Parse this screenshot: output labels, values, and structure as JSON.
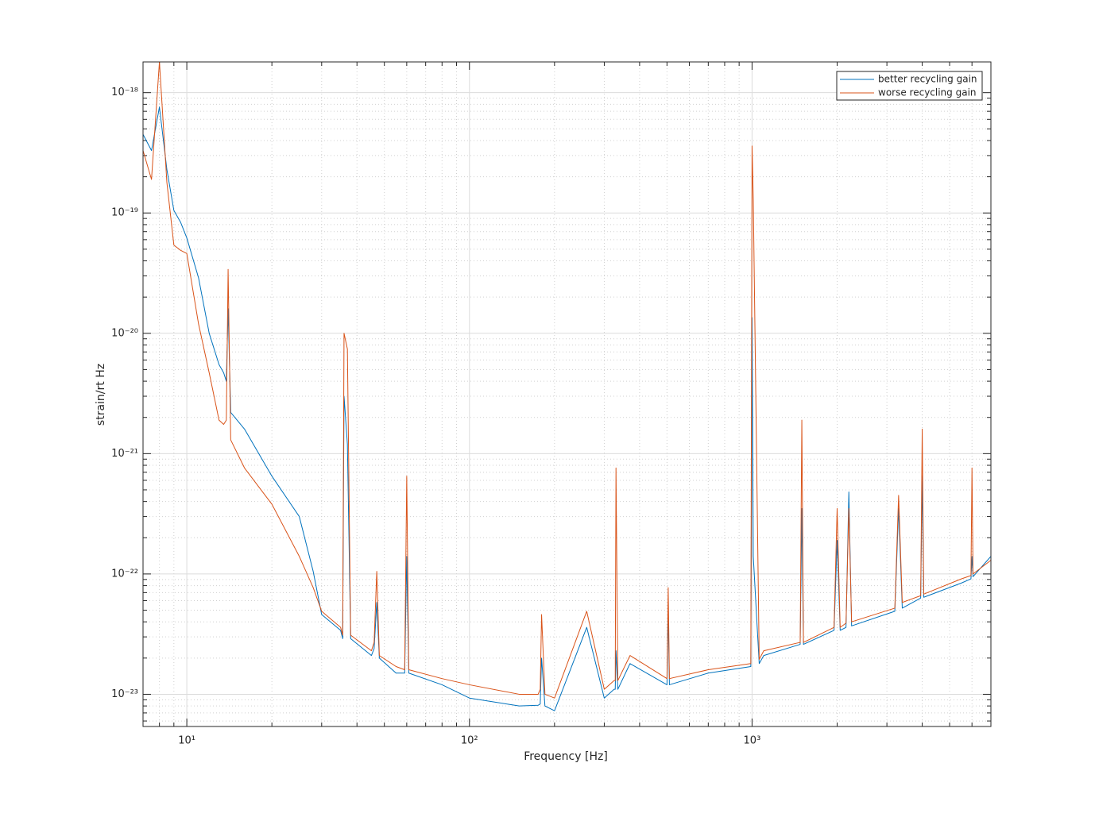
{
  "chart_data": {
    "type": "line",
    "xlabel": "Frequency [Hz]",
    "ylabel": "strain/rt Hz",
    "xscale": "log",
    "yscale": "log",
    "grid": true,
    "minor_grid": true,
    "legend": "upper right",
    "xlim": [
      7,
      7000
    ],
    "ylim": [
      5.4e-24,
      1.8e-18
    ],
    "xticks": [
      {
        "value": 10,
        "label": "10¹"
      },
      {
        "value": 100,
        "label": "10²"
      },
      {
        "value": 1000,
        "label": "10³"
      }
    ],
    "yticks": [
      {
        "value": 1e-23,
        "label": "10⁻²³"
      },
      {
        "value": 1e-22,
        "label": "10⁻²²"
      },
      {
        "value": 1e-21,
        "label": "10⁻²¹"
      },
      {
        "value": 1e-20,
        "label": "10⁻²⁰"
      },
      {
        "value": 1e-19,
        "label": "10⁻¹⁹"
      },
      {
        "value": 1e-18,
        "label": "10⁻¹⁸"
      }
    ],
    "xminorticks": [
      8,
      9,
      20,
      30,
      40,
      50,
      60,
      70,
      80,
      90,
      200,
      300,
      400,
      500,
      600,
      700,
      800,
      900,
      2000,
      3000,
      4000,
      5000,
      6000
    ],
    "yminorticks": [
      6e-24,
      7e-24,
      8e-24,
      9e-24,
      2e-23,
      3e-23,
      4e-23,
      5e-23,
      6e-23,
      7e-23,
      8e-23,
      9e-23,
      2e-22,
      3e-22,
      4e-22,
      5e-22,
      6e-22,
      7e-22,
      8e-22,
      9e-22,
      2e-21,
      3e-21,
      4e-21,
      5e-21,
      6e-21,
      7e-21,
      8e-21,
      9e-21,
      2e-20,
      3e-20,
      4e-20,
      5e-20,
      6e-20,
      7e-20,
      8e-20,
      9e-20,
      2e-19,
      3e-19,
      4e-19,
      5e-19,
      6e-19,
      7e-19,
      8e-19,
      9e-19
    ],
    "x": [
      7,
      7.5,
      8,
      8.5,
      9,
      9.5,
      10,
      11,
      12,
      13,
      13.5,
      13.8,
      14,
      14.3,
      16,
      20,
      25,
      28,
      30,
      35,
      35.6,
      36,
      37,
      38,
      45,
      46,
      47,
      48,
      55,
      59,
      60,
      61,
      80,
      100,
      150,
      175,
      178,
      180,
      185,
      200,
      260,
      300,
      325,
      328,
      330,
      335,
      370,
      500,
      505,
      510,
      700,
      990,
      1000,
      1010,
      1060,
      1100,
      1480,
      1500,
      1520,
      1950,
      2000,
      2050,
      2150,
      2200,
      2250,
      3200,
      3300,
      3400,
      3950,
      4000,
      4050,
      5500,
      5950,
      6000,
      6050,
      7000
    ],
    "series": [
      {
        "name": "better recycling gain",
        "color": "#0072bd",
        "values": [
          4.5e-19,
          3.3e-19,
          7.6e-19,
          2.3e-19,
          1.05e-19,
          8.4e-20,
          6.2e-20,
          2.9e-20,
          1e-20,
          5.5e-21,
          4.7e-21,
          4e-21,
          1.6e-20,
          2.2e-21,
          1.6e-21,
          6.5e-22,
          3e-22,
          1.05e-22,
          4.6e-23,
          3.4e-23,
          2.9e-23,
          3e-21,
          1.2e-21,
          2.9e-23,
          2.1e-23,
          2.4e-23,
          5.8e-23,
          2e-23,
          1.5e-23,
          1.5e-23,
          1.4e-22,
          1.5e-23,
          1.2e-23,
          9.3e-24,
          8e-24,
          8.1e-24,
          8.3e-24,
          2e-23,
          8e-24,
          7.3e-24,
          3.6e-23,
          9.3e-24,
          1.1e-23,
          1.1e-23,
          2.3e-23,
          1.1e-23,
          1.8e-23,
          1.2e-23,
          4.9e-23,
          1.2e-23,
          1.5e-23,
          1.7e-23,
          1.35e-20,
          1.4e-22,
          1.8e-23,
          2.1e-23,
          2.6e-23,
          3.5e-22,
          2.6e-23,
          3.4e-23,
          1.9e-22,
          3.4e-23,
          3.6e-23,
          4.8e-22,
          3.7e-23,
          4.9e-23,
          3.5e-22,
          5.2e-23,
          6.3e-23,
          6.5e-22,
          6.4e-23,
          8.4e-23,
          9.1e-23,
          1.4e-22,
          9.5e-23,
          1.4e-22
        ]
      },
      {
        "name": "worse recycling gain",
        "color": "#d95319",
        "values": [
          3.3e-19,
          1.9e-19,
          1.8e-18,
          1.8e-19,
          5.4e-20,
          4.9e-20,
          4.6e-20,
          1.2e-20,
          4.7e-21,
          1.9e-21,
          1.75e-21,
          1.9e-21,
          3.4e-20,
          1.3e-21,
          7.6e-22,
          3.8e-22,
          1.4e-22,
          7.7e-23,
          4.9e-23,
          3.6e-23,
          3.1e-23,
          1e-20,
          7.4e-21,
          3.1e-23,
          2.3e-23,
          2.7e-23,
          1.05e-22,
          2.1e-23,
          1.7e-23,
          1.6e-23,
          6.5e-22,
          1.6e-23,
          1.35e-23,
          1.2e-23,
          1e-23,
          1e-23,
          1.1e-23,
          4.6e-23,
          1e-23,
          9.3e-24,
          4.9e-23,
          1.1e-23,
          1.3e-23,
          1.3e-23,
          7.6e-22,
          1.3e-23,
          2.1e-23,
          1.35e-23,
          7.7e-23,
          1.35e-23,
          1.6e-23,
          1.8e-23,
          3.6e-19,
          1.3e-19,
          1.95e-23,
          2.3e-23,
          2.7e-23,
          1.9e-21,
          2.7e-23,
          3.6e-23,
          3.5e-22,
          3.6e-23,
          3.9e-23,
          3.5e-22,
          4e-23,
          5.2e-23,
          4.5e-22,
          5.8e-23,
          6.6e-23,
          1.6e-21,
          6.8e-23,
          9.1e-23,
          9.7e-23,
          7.6e-22,
          1e-22,
          1.3e-22
        ]
      }
    ]
  }
}
